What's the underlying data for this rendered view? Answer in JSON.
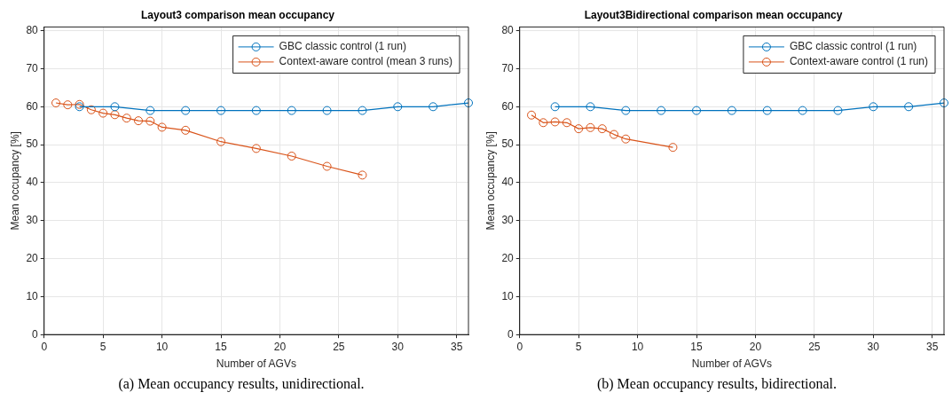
{
  "chart_data": [
    {
      "type": "line",
      "title": "Layout3 comparison mean occupancy",
      "xlabel": "Number of AGVs",
      "ylabel": "Mean occupancy [%]",
      "annotations": [
        "(a) Mean occupancy results, unidirectional."
      ],
      "xlim": [
        0,
        36
      ],
      "ylim": [
        0,
        81
      ],
      "xticks": [
        0,
        5,
        10,
        15,
        20,
        25,
        30,
        35
      ],
      "yticks": [
        0,
        10,
        20,
        30,
        40,
        50,
        60,
        70,
        80
      ],
      "grid": true,
      "legend": "top right",
      "marker": "circle",
      "line_style": "solid",
      "series": [
        {
          "name": "GBC classic control (1 run)",
          "color": "#0072bd",
          "x": [
            3,
            6,
            9,
            12,
            15,
            18,
            21,
            24,
            27,
            30,
            33,
            36
          ],
          "values": [
            60,
            60,
            59,
            59,
            59,
            59,
            59,
            59,
            59,
            60,
            60,
            61
          ]
        },
        {
          "name": "Context-aware control (mean 3 runs)",
          "color": "#d95319",
          "x": [
            1,
            2,
            3,
            4,
            5,
            6,
            7,
            8,
            9,
            10,
            12,
            15,
            18,
            21,
            24,
            27
          ],
          "values": [
            61,
            60.5,
            60.6,
            59.2,
            58.3,
            57.9,
            57,
            56.3,
            56.2,
            54.6,
            53.8,
            50.8,
            49,
            47,
            44.3,
            42
          ]
        }
      ]
    },
    {
      "type": "line",
      "title": "Layout3Bidirectional comparison mean occupancy",
      "xlabel": "Number of AGVs",
      "ylabel": "Mean occupancy [%]",
      "annotations": [
        "(b) Mean occupancy results, bidirectional."
      ],
      "xlim": [
        0,
        36
      ],
      "ylim": [
        0,
        81
      ],
      "xticks": [
        0,
        5,
        10,
        15,
        20,
        25,
        30,
        35
      ],
      "yticks": [
        0,
        10,
        20,
        30,
        40,
        50,
        60,
        70,
        80
      ],
      "grid": true,
      "legend": "top right",
      "marker": "circle",
      "line_style": "solid",
      "series": [
        {
          "name": "GBC classic control (1 run)",
          "color": "#0072bd",
          "x": [
            3,
            6,
            9,
            12,
            15,
            18,
            21,
            24,
            27,
            30,
            33,
            36
          ],
          "values": [
            60,
            60,
            59,
            59,
            59,
            59,
            59,
            59,
            59,
            60,
            60,
            61
          ]
        },
        {
          "name": "Context-aware control (1 run)",
          "color": "#d95319",
          "x": [
            1,
            2,
            3,
            4,
            5,
            6,
            7,
            8,
            9,
            13
          ],
          "values": [
            57.8,
            55.8,
            56,
            55.8,
            54.2,
            54.5,
            54.2,
            52.7,
            51.5,
            49.3
          ]
        }
      ]
    }
  ]
}
